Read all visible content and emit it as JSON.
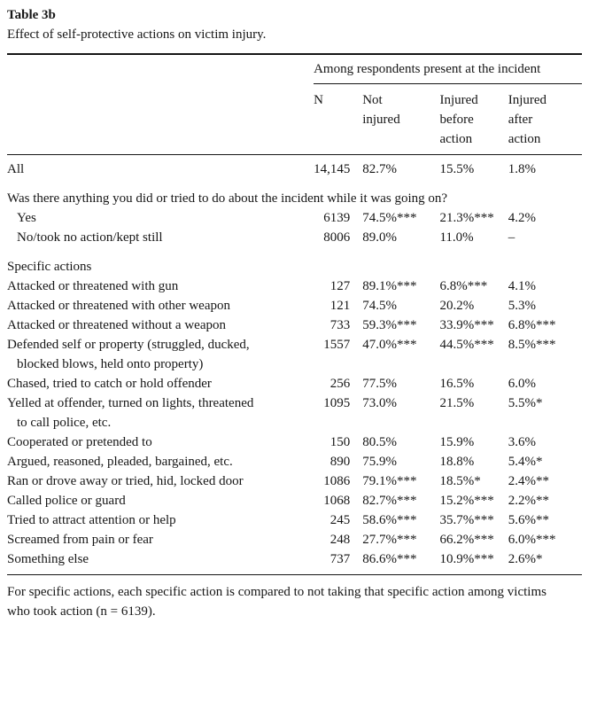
{
  "caption": {
    "label": "Table 3b",
    "title": "Effect of self-protective actions on victim injury."
  },
  "header": {
    "group_label": "Among respondents present at the incident",
    "columns": [
      "N",
      "Not injured",
      "Injured before action",
      "Injured after action"
    ]
  },
  "rows": [
    {
      "type": "data",
      "label": "All",
      "n": "14,145",
      "ni": "82.7%",
      "ib": "15.5%",
      "ia": "1.8%"
    },
    {
      "type": "spacer"
    },
    {
      "type": "question",
      "label": "Was there anything you did or tried to do about the incident while it was going on?"
    },
    {
      "type": "data",
      "indent": true,
      "label": "Yes",
      "n": "6139",
      "ni": "74.5%***",
      "ib": "21.3%***",
      "ia": "4.2%"
    },
    {
      "type": "data",
      "indent": true,
      "label": "No/took no action/kept still",
      "n": "8006",
      "ni": "89.0%",
      "ib": "11.0%",
      "ia": "–"
    },
    {
      "type": "spacer"
    },
    {
      "type": "subheading",
      "label": "Specific actions"
    },
    {
      "type": "data",
      "label": "Attacked or threatened with gun",
      "n": "127",
      "ni": "89.1%***",
      "ib": "6.8%***",
      "ia": "4.1%"
    },
    {
      "type": "data",
      "label": "Attacked or threatened with other weapon",
      "n": "121",
      "ni": "74.5%",
      "ib": "20.2%",
      "ia": "5.3%"
    },
    {
      "type": "data",
      "label": "Attacked or threatened without a weapon",
      "n": "733",
      "ni": "59.3%***",
      "ib": "33.9%***",
      "ia": "6.8%***"
    },
    {
      "type": "data",
      "label": "Defended self or property (struggled, ducked, blocked blows, held onto property)",
      "n": "1557",
      "ni": "47.0%***",
      "ib": "44.5%***",
      "ia": "8.5%***"
    },
    {
      "type": "data",
      "label": "Chased, tried to catch or hold offender",
      "n": "256",
      "ni": "77.5%",
      "ib": "16.5%",
      "ia": "6.0%"
    },
    {
      "type": "data",
      "label": "Yelled at offender, turned on lights, threatened to call police, etc.",
      "n": "1095",
      "ni": "73.0%",
      "ib": "21.5%",
      "ia": "5.5%*"
    },
    {
      "type": "data",
      "label": "Cooperated or pretended to",
      "n": "150",
      "ni": "80.5%",
      "ib": "15.9%",
      "ia": "3.6%"
    },
    {
      "type": "data",
      "label": "Argued, reasoned, pleaded, bargained, etc.",
      "n": "890",
      "ni": "75.9%",
      "ib": "18.8%",
      "ia": "5.4%*"
    },
    {
      "type": "data",
      "label": "Ran or drove away or tried, hid, locked door",
      "n": "1086",
      "ni": "79.1%***",
      "ib": "18.5%*",
      "ia": "2.4%**"
    },
    {
      "type": "data",
      "label": "Called police or guard",
      "n": "1068",
      "ni": "82.7%***",
      "ib": "15.2%***",
      "ia": "2.2%**"
    },
    {
      "type": "data",
      "label": "Tried to attract attention or help",
      "n": "245",
      "ni": "58.6%***",
      "ib": "35.7%***",
      "ia": "5.6%**"
    },
    {
      "type": "data",
      "label": "Screamed from pain or fear",
      "n": "248",
      "ni": "27.7%***",
      "ib": "66.2%***",
      "ia": "6.0%***"
    },
    {
      "type": "data",
      "label": "Something else",
      "n": "737",
      "ni": "86.6%***",
      "ib": "10.9%***",
      "ia": "2.6%*"
    }
  ],
  "footnote": "For specific actions, each specific action is compared to not taking that specific action among victims who took action (n = 6139).",
  "colors": {
    "background": "#ffffff",
    "text": "#161616",
    "rules": "#161616"
  }
}
